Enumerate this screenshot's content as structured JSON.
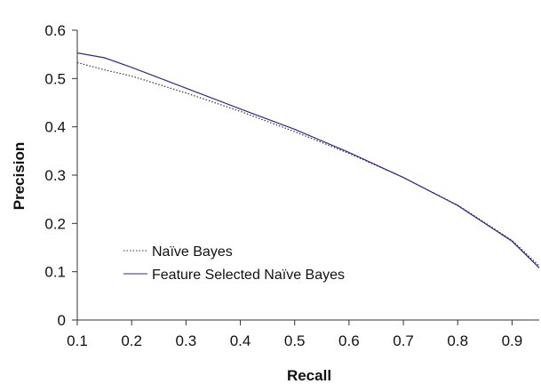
{
  "chart_data": {
    "type": "line",
    "xlabel": "Recall",
    "ylabel": "Precision",
    "xlim": [
      0.1,
      0.95
    ],
    "ylim": [
      0,
      0.6
    ],
    "xticks": [
      0.1,
      0.2,
      0.3,
      0.4,
      0.5,
      0.6,
      0.7,
      0.8,
      0.9
    ],
    "yticks": [
      0,
      0.1,
      0.2,
      0.3,
      0.4,
      0.5,
      0.6
    ],
    "grid": false,
    "legend_position": "lower-left",
    "series": [
      {
        "name": "Naïve Bayes",
        "style": "dotted",
        "color": "#333333",
        "x": [
          0.1,
          0.15,
          0.2,
          0.3,
          0.4,
          0.5,
          0.6,
          0.7,
          0.8,
          0.9,
          0.95
        ],
        "y": [
          0.533,
          0.518,
          0.505,
          0.47,
          0.432,
          0.39,
          0.345,
          0.295,
          0.238,
          0.165,
          0.112
        ]
      },
      {
        "name": "Feature Selected Naïve Bayes",
        "style": "solid",
        "color": "#2b2b8c",
        "x": [
          0.1,
          0.15,
          0.2,
          0.3,
          0.4,
          0.5,
          0.6,
          0.7,
          0.8,
          0.9,
          0.95
        ],
        "y": [
          0.553,
          0.543,
          0.523,
          0.48,
          0.437,
          0.395,
          0.347,
          0.295,
          0.237,
          0.163,
          0.108
        ]
      }
    ]
  }
}
